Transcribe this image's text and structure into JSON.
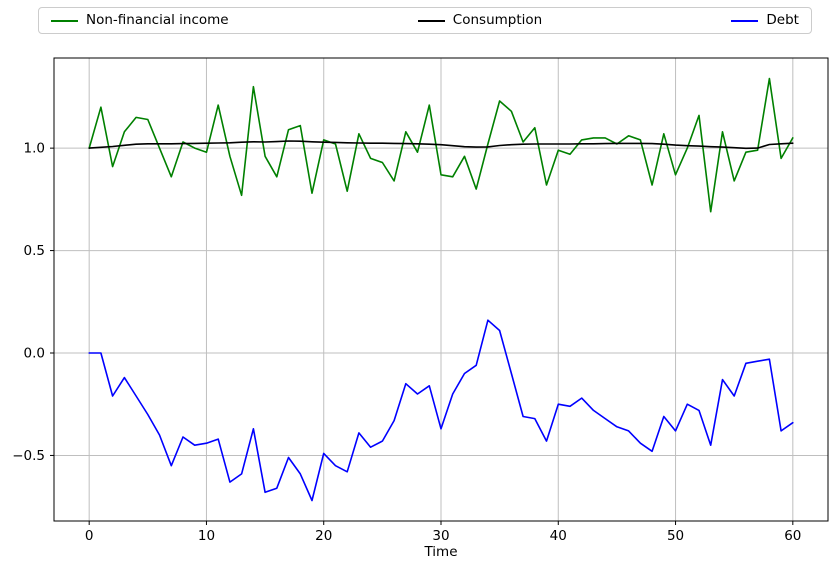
{
  "chart_data": {
    "type": "line",
    "title": "",
    "xlabel": "Time",
    "ylabel": "",
    "x_ticks": [
      0,
      10,
      20,
      30,
      40,
      50,
      60
    ],
    "y_ticks": [
      -0.5,
      0.0,
      0.5,
      1.0
    ],
    "xlim": [
      -3,
      63
    ],
    "ylim": [
      -0.82,
      1.44
    ],
    "grid": true,
    "grid_color": "#bfbfbf",
    "background": "#ffffff",
    "legend_position": "top-expand",
    "x": [
      0,
      1,
      2,
      3,
      4,
      5,
      6,
      7,
      8,
      9,
      10,
      11,
      12,
      13,
      14,
      15,
      16,
      17,
      18,
      19,
      20,
      21,
      22,
      23,
      24,
      25,
      26,
      27,
      28,
      29,
      30,
      31,
      32,
      33,
      34,
      35,
      36,
      37,
      38,
      39,
      40,
      41,
      42,
      43,
      44,
      45,
      46,
      47,
      48,
      49,
      50,
      51,
      52,
      53,
      54,
      55,
      56,
      57,
      58,
      59,
      60
    ],
    "series": [
      {
        "name": "Non-financial income",
        "color": "#008000",
        "values": [
          1.0,
          1.2,
          0.91,
          1.08,
          1.15,
          1.14,
          1.0,
          0.86,
          1.03,
          1.0,
          0.98,
          1.21,
          0.96,
          0.77,
          1.3,
          0.96,
          0.86,
          1.09,
          1.11,
          0.78,
          1.04,
          1.02,
          0.79,
          1.07,
          0.95,
          0.93,
          0.84,
          1.08,
          0.98,
          1.21,
          0.87,
          0.86,
          0.96,
          0.8,
          1.02,
          1.23,
          1.18,
          1.03,
          1.1,
          0.82,
          0.99,
          0.97,
          1.04,
          1.05,
          1.05,
          1.02,
          1.06,
          1.04,
          0.82,
          1.07,
          0.87,
          1.0,
          1.16,
          0.69,
          1.08,
          0.84,
          0.98,
          0.99,
          1.34,
          0.95,
          1.05
        ]
      },
      {
        "name": "Consumption",
        "color": "#000000",
        "values": [
          1.0,
          1.004,
          1.008,
          1.014,
          1.019,
          1.021,
          1.021,
          1.021,
          1.022,
          1.023,
          1.024,
          1.025,
          1.026,
          1.029,
          1.031,
          1.03,
          1.032,
          1.035,
          1.034,
          1.031,
          1.029,
          1.028,
          1.026,
          1.025,
          1.024,
          1.024,
          1.023,
          1.022,
          1.021,
          1.019,
          1.017,
          1.012,
          1.007,
          1.005,
          1.006,
          1.013,
          1.017,
          1.019,
          1.02,
          1.02,
          1.02,
          1.02,
          1.021,
          1.021,
          1.022,
          1.023,
          1.023,
          1.023,
          1.022,
          1.019,
          1.015,
          1.012,
          1.01,
          1.007,
          1.005,
          1.002,
          0.999,
          1.0,
          1.018,
          1.021,
          1.024
        ]
      },
      {
        "name": "Debt",
        "color": "#0000ff",
        "values": [
          0.0,
          0.0,
          -0.21,
          -0.12,
          -0.21,
          -0.3,
          -0.4,
          -0.55,
          -0.41,
          -0.45,
          -0.44,
          -0.42,
          -0.63,
          -0.59,
          -0.37,
          -0.68,
          -0.66,
          -0.51,
          -0.59,
          -0.72,
          -0.49,
          -0.55,
          -0.58,
          -0.39,
          -0.46,
          -0.43,
          -0.33,
          -0.15,
          -0.2,
          -0.16,
          -0.37,
          -0.2,
          -0.1,
          -0.06,
          0.16,
          0.11,
          -0.1,
          -0.31,
          -0.32,
          -0.43,
          -0.25,
          -0.26,
          -0.22,
          -0.28,
          -0.32,
          -0.36,
          -0.38,
          -0.44,
          -0.48,
          -0.31,
          -0.38,
          -0.25,
          -0.28,
          -0.45,
          -0.13,
          -0.21,
          -0.05,
          -0.04,
          -0.03,
          -0.38,
          -0.34
        ]
      }
    ]
  }
}
